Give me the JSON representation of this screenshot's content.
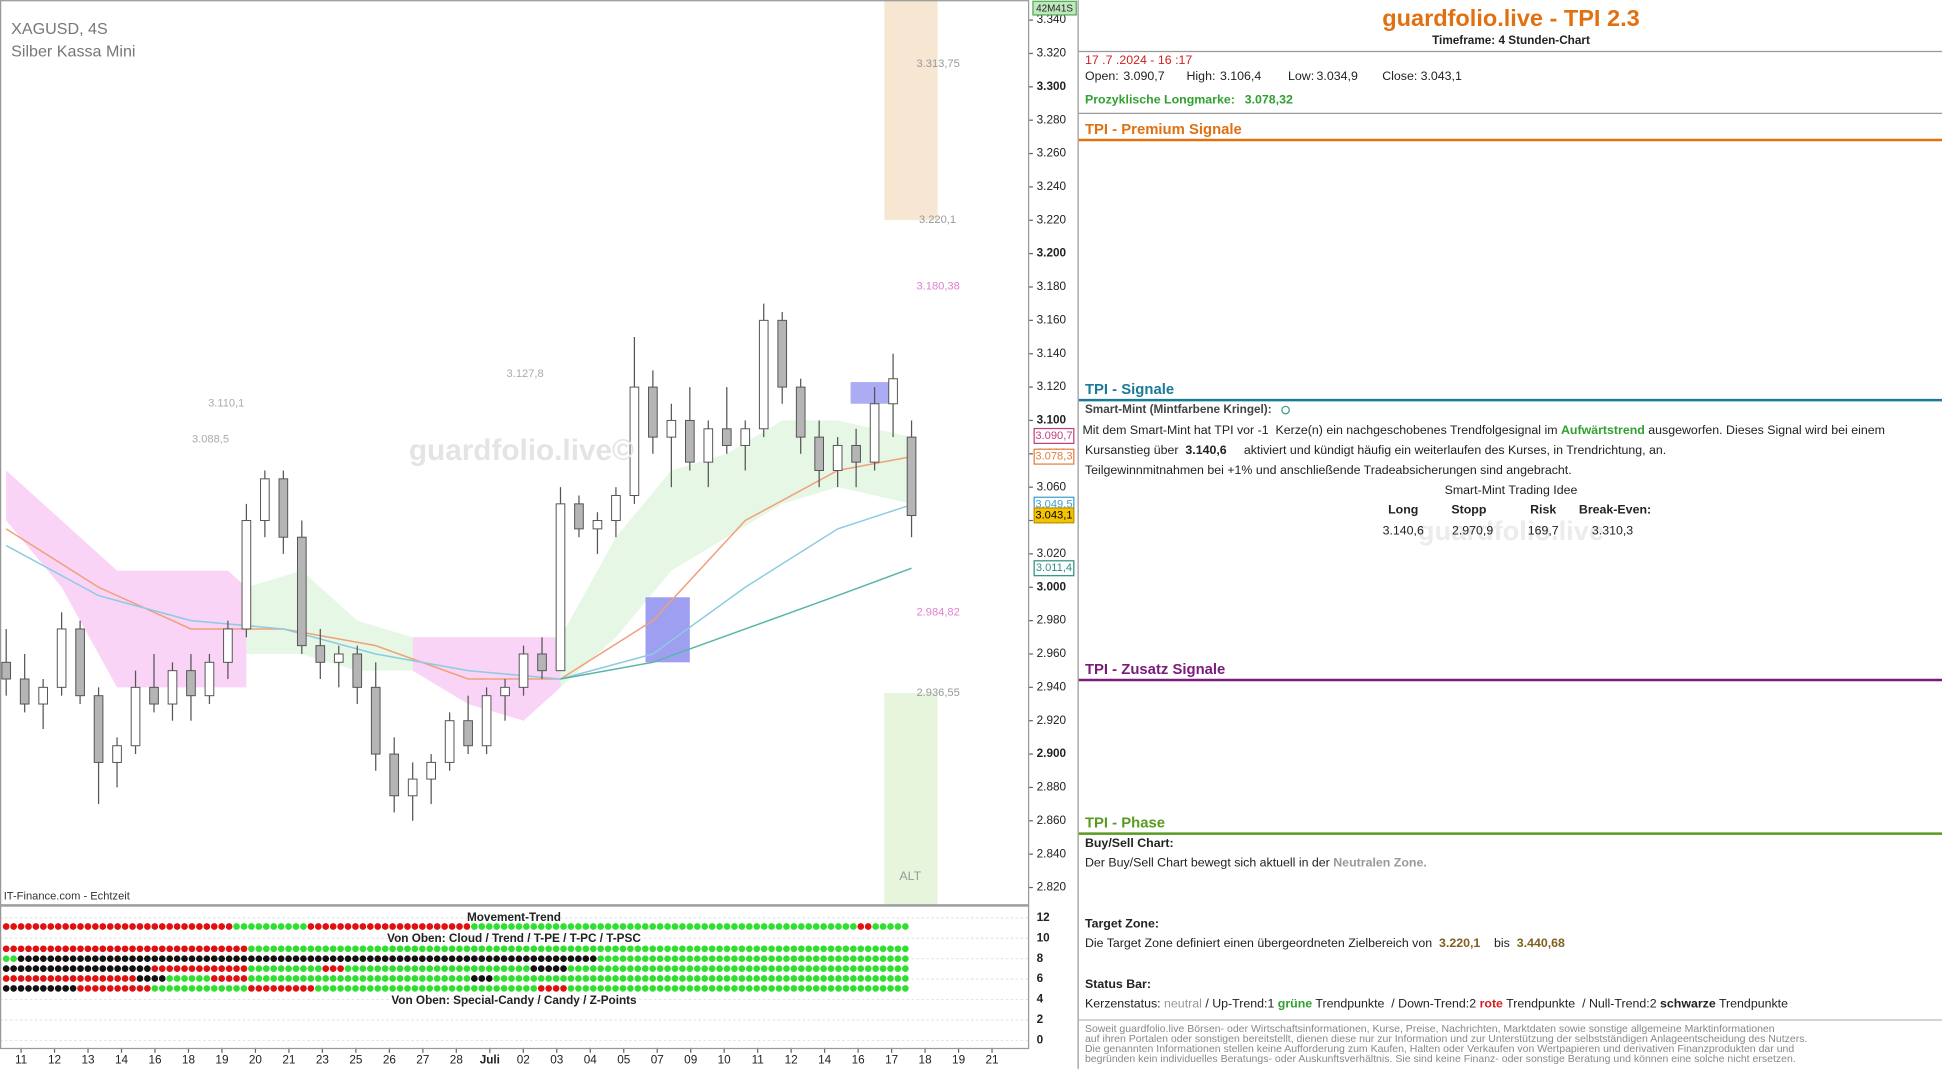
{
  "chart_data": {
    "type": "candlestick",
    "symbol": "XAGUSD, 4S",
    "name": "Silber Kassa Mini",
    "source": "IT-Finance.com - Echtzeit",
    "watermark": "guardfolio.live©",
    "timer": "42M41S",
    "categories": [
      "11",
      "12",
      "13",
      "14",
      "16",
      "18",
      "19",
      "20",
      "21",
      "23",
      "25",
      "26",
      "27",
      "28",
      "Juli",
      "02",
      "03",
      "04",
      "05",
      "07",
      "09",
      "10",
      "11",
      "12",
      "14",
      "16",
      "17",
      "18",
      "19",
      "21"
    ],
    "candles": [
      [
        2.955,
        2.975,
        2.935,
        2.945
      ],
      [
        2.945,
        2.96,
        2.925,
        2.93
      ],
      [
        2.93,
        2.945,
        2.915,
        2.94
      ],
      [
        2.94,
        2.985,
        2.935,
        2.975
      ],
      [
        2.975,
        2.98,
        2.93,
        2.935
      ],
      [
        2.935,
        2.94,
        2.87,
        2.895
      ],
      [
        2.895,
        2.91,
        2.88,
        2.905
      ],
      [
        2.905,
        2.95,
        2.9,
        2.94
      ],
      [
        2.94,
        2.96,
        2.925,
        2.93
      ],
      [
        2.93,
        2.955,
        2.92,
        2.95
      ],
      [
        2.95,
        2.96,
        2.92,
        2.935
      ],
      [
        2.935,
        2.96,
        2.93,
        2.955
      ],
      [
        2.955,
        2.98,
        2.945,
        2.975
      ],
      [
        2.975,
        3.05,
        2.97,
        3.04
      ],
      [
        3.04,
        3.07,
        3.03,
        3.065
      ],
      [
        3.065,
        3.07,
        3.02,
        3.03
      ],
      [
        3.03,
        3.04,
        2.96,
        2.965
      ],
      [
        2.965,
        2.975,
        2.945,
        2.955
      ],
      [
        2.955,
        2.965,
        2.94,
        2.96
      ],
      [
        2.96,
        2.965,
        2.93,
        2.94
      ],
      [
        2.94,
        2.955,
        2.89,
        2.9
      ],
      [
        2.9,
        2.91,
        2.865,
        2.875
      ],
      [
        2.875,
        2.895,
        2.86,
        2.885
      ],
      [
        2.885,
        2.9,
        2.87,
        2.895
      ],
      [
        2.895,
        2.925,
        2.89,
        2.92
      ],
      [
        2.92,
        2.935,
        2.9,
        2.905
      ],
      [
        2.905,
        2.94,
        2.9,
        2.935
      ],
      [
        2.935,
        2.945,
        2.92,
        2.94
      ],
      [
        2.94,
        2.965,
        2.935,
        2.96
      ],
      [
        2.96,
        2.97,
        2.945,
        2.95
      ],
      [
        2.95,
        3.06,
        2.95,
        3.05
      ],
      [
        3.05,
        3.055,
        3.03,
        3.035
      ],
      [
        3.035,
        3.045,
        3.02,
        3.04
      ],
      [
        3.04,
        3.06,
        3.03,
        3.055
      ],
      [
        3.055,
        3.15,
        3.05,
        3.12
      ],
      [
        3.12,
        3.13,
        3.08,
        3.09
      ],
      [
        3.09,
        3.11,
        3.06,
        3.1
      ],
      [
        3.1,
        3.12,
        3.07,
        3.075
      ],
      [
        3.075,
        3.1,
        3.06,
        3.095
      ],
      [
        3.095,
        3.12,
        3.08,
        3.085
      ],
      [
        3.085,
        3.1,
        3.07,
        3.095
      ],
      [
        3.095,
        3.17,
        3.09,
        3.16
      ],
      [
        3.16,
        3.165,
        3.11,
        3.12
      ],
      [
        3.12,
        3.125,
        3.08,
        3.09
      ],
      [
        3.09,
        3.1,
        3.06,
        3.07
      ],
      [
        3.07,
        3.09,
        3.06,
        3.085
      ],
      [
        3.085,
        3.095,
        3.06,
        3.075
      ],
      [
        3.075,
        3.12,
        3.07,
        3.11
      ],
      [
        3.11,
        3.14,
        3.09,
        3.125
      ],
      [
        3.09,
        3.1,
        3.03,
        3.043
      ]
    ],
    "up_color": "#ffffff",
    "down_color": "#b5b5b5",
    "wick_color": "#555555",
    "ylim": [
      2.81,
      3.352
    ],
    "yticks": [
      {
        "value": 3.34,
        "label": "3.340"
      },
      {
        "value": 3.32,
        "label": "3.320"
      },
      {
        "value": 3.3,
        "label": "3.300"
      },
      {
        "value": 3.28,
        "label": "3.280"
      },
      {
        "value": 3.26,
        "label": "3.260"
      },
      {
        "value": 3.24,
        "label": "3.240"
      },
      {
        "value": 3.22,
        "label": "3.220"
      },
      {
        "value": 3.2,
        "label": "3.200"
      },
      {
        "value": 3.18,
        "label": "3.180"
      },
      {
        "value": 3.16,
        "label": "3.160"
      },
      {
        "value": 3.14,
        "label": "3.140"
      },
      {
        "value": 3.12,
        "label": "3.120"
      },
      {
        "value": 3.1,
        "label": "3.100"
      },
      {
        "value": 3.08,
        "label": "3.080"
      },
      {
        "value": 3.06,
        "label": "3.060"
      },
      {
        "value": 3.04,
        "label": "3.040"
      },
      {
        "value": 3.02,
        "label": "3.020"
      },
      {
        "value": 3.0,
        "label": "3.000"
      },
      {
        "value": 2.98,
        "label": "2.980"
      },
      {
        "value": 2.96,
        "label": "2.960"
      },
      {
        "value": 2.94,
        "label": "2.940"
      },
      {
        "value": 2.92,
        "label": "2.920"
      },
      {
        "value": 2.9,
        "label": "2.900"
      },
      {
        "value": 2.88,
        "label": "2.880"
      },
      {
        "value": 2.86,
        "label": "2.860"
      },
      {
        "value": 2.84,
        "label": "2.840"
      },
      {
        "value": 2.82,
        "label": "2.820"
      }
    ],
    "zones": [
      {
        "color": "#f6e6d2",
        "from": 3.2201,
        "to": 3.352
      },
      {
        "color": "#e6f5dc",
        "from": 2.81,
        "to": 2.93655
      }
    ],
    "zone_label": "ALT",
    "clouds": [
      {
        "color": "#f8ccf4",
        "x": [
          0,
          3,
          6,
          9,
          12,
          13
        ],
        "upper": [
          3.07,
          3.04,
          3.01,
          3.01,
          3.01,
          3.0
        ],
        "lower": [
          3.04,
          3.0,
          2.94,
          2.94,
          2.94,
          2.94
        ]
      },
      {
        "color": "#f8ccf4",
        "x": [
          22,
          25,
          28,
          30
        ],
        "upper": [
          2.97,
          2.97,
          2.97,
          2.97
        ],
        "lower": [
          2.95,
          2.93,
          2.92,
          2.94
        ]
      },
      {
        "color": "#e2f6e0",
        "x": [
          13,
          16,
          19,
          22
        ],
        "upper": [
          3.0,
          3.01,
          2.98,
          2.97
        ],
        "lower": [
          2.96,
          2.96,
          2.95,
          2.95
        ]
      },
      {
        "color": "#e2f6e0",
        "x": [
          30,
          33,
          36,
          39,
          42,
          45,
          49
        ],
        "upper": [
          2.97,
          3.03,
          3.07,
          3.08,
          3.1,
          3.1,
          3.09
        ],
        "lower": [
          2.94,
          2.97,
          3.01,
          3.03,
          3.05,
          3.06,
          3.05
        ]
      }
    ],
    "lines": [
      {
        "color": "#f0a078",
        "x": [
          0,
          5,
          10,
          15,
          20,
          25,
          30,
          35,
          40,
          45,
          49
        ],
        "values": [
          3.035,
          3.0,
          2.975,
          2.975,
          2.965,
          2.945,
          2.945,
          2.98,
          3.04,
          3.07,
          3.0783
        ]
      },
      {
        "color": "#8ccbe0",
        "x": [
          0,
          5,
          10,
          15,
          20,
          25,
          30,
          35,
          40,
          45,
          49
        ],
        "values": [
          3.025,
          2.995,
          2.98,
          2.975,
          2.96,
          2.95,
          2.945,
          2.96,
          3.0,
          3.035,
          3.0495
        ]
      },
      {
        "color": "#5ab5a8",
        "x": [
          30,
          35,
          40,
          45,
          49
        ],
        "values": [
          2.945,
          2.955,
          2.975,
          2.995,
          3.0114
        ]
      }
    ],
    "boxes": [
      {
        "color": "#8e8ef0",
        "x": [
          34.6,
          37
        ],
        "y": [
          2.955,
          2.994
        ]
      },
      {
        "color": "#9e9ef2",
        "x": [
          45.7,
          47.8
        ],
        "y": [
          3.11,
          3.123
        ]
      }
    ],
    "annotations": [
      {
        "value": 3.31375,
        "label": "3.313,75",
        "color": "#999999"
      },
      {
        "value": 3.2201,
        "label": "3.220,1",
        "color": "#999999"
      },
      {
        "value": 3.18038,
        "label": "3.180,38",
        "color": "#e080d0"
      },
      {
        "value": 2.98482,
        "label": "2.984,82",
        "color": "#e080d0"
      },
      {
        "value": 2.93655,
        "label": "2.936,55",
        "color": "#999999"
      },
      {
        "value": 3.1101,
        "label": "3.110,1",
        "color": "#aaaaaa"
      },
      {
        "value": 3.0885,
        "label": "3.088,5",
        "color": "#aaaaaa"
      },
      {
        "value": 3.1278,
        "label": "3.127,8",
        "color": "#aaaaaa"
      }
    ],
    "price_labels": [
      {
        "value": 3.0907,
        "label": "3.090,7",
        "color": "#c04080",
        "fill": "#ffffff"
      },
      {
        "value": 3.0783,
        "label": "3.078,3",
        "color": "#e08040",
        "fill": "#ffffff"
      },
      {
        "value": 3.0495,
        "label": "3.049,5",
        "color": "#40a0d0",
        "fill": "#ffffff"
      },
      {
        "value": 3.0431,
        "label": "3.043,1",
        "color": "#c09000",
        "fill": "#f5c400"
      },
      {
        "value": 3.0114,
        "label": "3.011,4",
        "color": "#309080",
        "fill": "#ffffff"
      }
    ],
    "indicator": {
      "title": "Movement-Trend",
      "subtitle1": "Von Oben: Cloud / Trend / T-PE / T-PC / T-PSC",
      "subtitle2": "Von Oben: Special-Candy / Candy / Z-Points",
      "ylim": [
        0,
        12
      ],
      "yticks": [
        0,
        2,
        4,
        6,
        8,
        10,
        12
      ],
      "rows": [
        {
          "y": 11.15,
          "runs": [
            [
              "#e01010",
              31
            ],
            [
              "#30e030",
              10
            ],
            [
              "#e01010",
              22
            ],
            [
              "#30e030",
              52
            ],
            [
              "#e01010",
              2
            ],
            [
              "#30e030",
              5
            ]
          ]
        },
        {
          "y": 8.97,
          "runs": [
            [
              "#e01010",
              33
            ],
            [
              "#30e030",
              89
            ]
          ]
        },
        {
          "y": 8.0,
          "runs": [
            [
              "#30e030",
              2
            ],
            [
              "#111111",
              78
            ],
            [
              "#30e030",
              42
            ]
          ]
        },
        {
          "y": 7.03,
          "runs": [
            [
              "#111111",
              20
            ],
            [
              "#e01010",
              13
            ],
            [
              "#30e030",
              10
            ],
            [
              "#e01010",
              3
            ],
            [
              "#30e030",
              25
            ],
            [
              "#111111",
              5
            ],
            [
              "#30e030",
              46
            ]
          ]
        },
        {
          "y": 6.06,
          "runs": [
            [
              "#e01010",
              18
            ],
            [
              "#111111",
              4
            ],
            [
              "#30e030",
              6
            ],
            [
              "#e01010",
              5
            ],
            [
              "#30e030",
              30
            ],
            [
              "#111111",
              3
            ],
            [
              "#30e030",
              56
            ]
          ]
        },
        {
          "y": 5.09,
          "runs": [
            [
              "#111111",
              10
            ],
            [
              "#e01010",
              10
            ],
            [
              "#30e030",
              13
            ],
            [
              "#e01010",
              9
            ],
            [
              "#30e030",
              30
            ],
            [
              "#e01010",
              4
            ],
            [
              "#30e030",
              46
            ]
          ]
        }
      ]
    }
  },
  "panel": {
    "title": "guardfolio.live - TPI 2.3",
    "timeframe": "Timeframe: 4 Stunden-Chart",
    "datetime": "17 .7 .2024 - 16 :17",
    "ohlc": [
      [
        "Open:",
        "3.090,7"
      ],
      [
        "High:",
        "3.106,4"
      ],
      [
        "Low:",
        "3.034,9"
      ],
      [
        "Close:",
        "3.043,1"
      ]
    ],
    "longmark_label": "Prozyklische Longmarke:",
    "longmark": "3.078,32",
    "sections": [
      "TPI - Premium Signale",
      "TPI - Signale",
      "TPI - Zusatz Signale",
      "TPI - Phase"
    ],
    "smartmint_title": "Smart-Mint (Mintfarbene Kringel):",
    "smartmint_text": [
      [
        "Mit dem Smart-Mint hat TPI vor -1  Kerze(n) ein nachgeschobenes Trendfolgesignal im ",
        "Aufwärtstrend",
        " ausgeworfen. Dieses Signal wird bei einem"
      ],
      [
        "Kursanstieg über  ",
        "3.140,6",
        "     aktiviert und kündigt häufig ein weiterlaufen des Kurses, in Trendrichtung, an."
      ],
      [
        "Teilgewinnmitnahmen bei +1% und anschließende Tradeabsicherungen sind angebracht."
      ]
    ],
    "idea_title": "Smart-Mint Trading Idee",
    "idea_headers": [
      "Long",
      "Stopp",
      "Risk",
      "Break-Even:"
    ],
    "idea_values": [
      "3.140,6",
      "2.970,9",
      "169,7",
      "3.310,3"
    ],
    "watermark": "guardfolio.live",
    "buysell_title": "Buy/Sell Chart:",
    "buysell_text": [
      "Der Buy/Sell Chart bewegt sich aktuell in der ",
      "Neutralen Zone."
    ],
    "target_title": "Target Zone:",
    "target_text": [
      "Die Target Zone definiert einen übergeordneten Zielbereich von  ",
      "3.220,1",
      "    bis  ",
      "3.440,68"
    ],
    "status_title": "Status Bar:",
    "status_text": [
      "Kerzenstatus: ",
      "neutral",
      " / Up-Trend:1 ",
      "grüne",
      " Trendpunkte  / Down-Trend:2 ",
      "rote",
      " Trendpunkte  / Null-Trend:2 ",
      "schwarze",
      " Trendpunkte"
    ],
    "disclaimer": [
      "Soweit guardfolio.live Börsen- oder Wirtschaftsinformationen, Kurse, Preise, Nachrichten, Marktdaten sowie sonstige allgemeine Marktinformationen",
      "auf ihren Portalen oder sonstigen bereitstellt, dienen diese nur zur Information und zur Unterstützung der selbstständigen Anlageentscheidung des Nutzers.",
      "Die genannten Informationen stellen keine Aufforderung zum Kaufen, Halten oder Verkaufen von Wertpapieren und derivativen Finanzprodukten dar und",
      "begründen kein individuelles Beratungs- oder Auskunftsverhältnis. Sie sind keine Finanz- oder sonstige Beratung und können eine solche nicht ersetzen."
    ]
  }
}
